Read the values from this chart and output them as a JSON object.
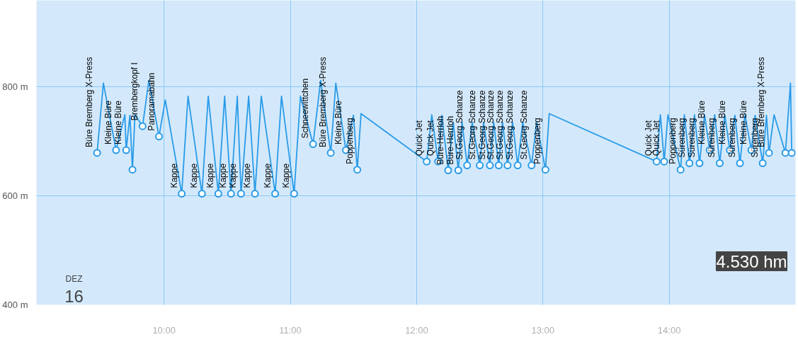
{
  "chart_data": {
    "type": "line",
    "xlim": [
      8.99,
      15.0
    ],
    "ylim": [
      400,
      959
    ],
    "xticks": [
      {
        "value": 10,
        "label": "10:00"
      },
      {
        "value": 11,
        "label": "11:00"
      },
      {
        "value": 12,
        "label": "12:00"
      },
      {
        "value": 13,
        "label": "13:00"
      },
      {
        "value": 14,
        "label": "14:00"
      }
    ],
    "yticks": [
      {
        "value": 400,
        "label": "400 m"
      },
      {
        "value": 600,
        "label": "600 m"
      },
      {
        "value": 800,
        "label": "800 m"
      }
    ],
    "grid": true,
    "series": [
      {
        "marker": "none",
        "color": "#2a9be8",
        "x": [
          9.47,
          9.52,
          9.62,
          9.69,
          9.7,
          9.73,
          9.75,
          9.77,
          9.83,
          9.88,
          9.96,
          10.01,
          10.14,
          10.19,
          10.3,
          10.35,
          10.43,
          10.48,
          10.53,
          10.58,
          10.61,
          10.67,
          10.72,
          10.77,
          10.88,
          10.93,
          11.03,
          11.08,
          11.18,
          11.24,
          11.32,
          11.36,
          11.44,
          11.5,
          11.53,
          11.56,
          12.08,
          12.12,
          12.17,
          12.2,
          12.25,
          12.29,
          12.33,
          12.36,
          12.4,
          12.44,
          12.5,
          12.53,
          12.58,
          12.61,
          12.65,
          12.68,
          12.72,
          12.76,
          12.8,
          12.84,
          12.91,
          12.95,
          13.02,
          13.05,
          13.9,
          13.93,
          13.96,
          13.99,
          14.09,
          14.12,
          14.16,
          14.2,
          14.24,
          14.28,
          14.32,
          14.36,
          14.4,
          14.44,
          14.48,
          14.52,
          14.56,
          14.6,
          14.65,
          14.68,
          14.74,
          14.77,
          14.79,
          14.83,
          14.92,
          14.96,
          14.97
        ],
        "values": [
          679,
          807,
          684,
          749,
          684,
          748,
          648,
          749,
          728,
          812,
          709,
          776,
          604,
          783,
          604,
          783,
          604,
          783,
          604,
          783,
          604,
          783,
          604,
          783,
          604,
          783,
          604,
          783,
          695,
          812,
          679,
          807,
          684,
          748,
          648,
          751,
          663,
          749,
          663,
          748,
          647,
          735,
          647,
          735,
          656,
          735,
          656,
          735,
          656,
          735,
          656,
          735,
          656,
          735,
          656,
          735,
          656,
          735,
          648,
          751,
          663,
          749,
          663,
          749,
          648,
          749,
          660,
          749,
          660,
          749,
          684,
          749,
          660,
          749,
          684,
          748,
          660,
          749,
          684,
          748,
          660,
          748,
          679,
          749,
          679,
          807,
          679
        ]
      },
      {
        "type": "scatter",
        "marker": "circle",
        "color": "#2a9be8",
        "x": [
          9.47,
          9.62,
          9.7,
          9.75,
          9.83,
          9.96,
          10.14,
          10.3,
          10.43,
          10.53,
          10.61,
          10.72,
          10.88,
          11.03,
          11.18,
          11.32,
          11.44,
          11.53,
          12.08,
          12.17,
          12.25,
          12.33,
          12.4,
          12.5,
          12.58,
          12.65,
          12.72,
          12.8,
          12.91,
          13.02,
          13.9,
          13.96,
          14.09,
          14.16,
          14.24,
          14.32,
          14.4,
          14.48,
          14.56,
          14.65,
          14.74,
          14.79,
          14.92,
          14.97
        ],
        "values": [
          679,
          684,
          684,
          648,
          728,
          709,
          604,
          604,
          604,
          604,
          604,
          604,
          604,
          604,
          695,
          679,
          684,
          648,
          663,
          663,
          647,
          647,
          656,
          656,
          656,
          656,
          656,
          656,
          656,
          648,
          663,
          663,
          648,
          660,
          660,
          684,
          660,
          684,
          660,
          684,
          660,
          679,
          679,
          679
        ]
      }
    ],
    "annotations": [
      "4.530 hm",
      "DEZ",
      "16",
      {
        "text": "Büre Bremberg X-Press",
        "x": 9.47,
        "y": 679
      },
      {
        "text": "Kleine Büre",
        "x": 9.62,
        "y": 684
      },
      {
        "text": "Kleine Büre",
        "x": 9.7,
        "y": 684
      },
      {
        "text": "Brembergkopf I",
        "x": 9.83,
        "y": 728
      },
      {
        "text": "Panoramabahn",
        "x": 9.96,
        "y": 709
      },
      {
        "text": "Kappe",
        "x": 10.14,
        "y": 604
      },
      {
        "text": "Kappe",
        "x": 10.3,
        "y": 604
      },
      {
        "text": "Kappe",
        "x": 10.43,
        "y": 604
      },
      {
        "text": "Kappe",
        "x": 10.53,
        "y": 604
      },
      {
        "text": "Kappe",
        "x": 10.61,
        "y": 604
      },
      {
        "text": "Kappe",
        "x": 10.72,
        "y": 604
      },
      {
        "text": "Kappe",
        "x": 10.88,
        "y": 604
      },
      {
        "text": "Kappe",
        "x": 11.03,
        "y": 604
      },
      {
        "text": "Schneewittchen",
        "x": 11.18,
        "y": 695
      },
      {
        "text": "Büre Bremberg X-Press",
        "x": 11.32,
        "y": 679
      },
      {
        "text": "Kleine Büre",
        "x": 11.44,
        "y": 684
      },
      {
        "text": "Poppenberg",
        "x": 11.53,
        "y": 648
      },
      {
        "text": "Quick Jet",
        "x": 12.08,
        "y": 663
      },
      {
        "text": "Quick Jet",
        "x": 12.17,
        "y": 663
      },
      {
        "text": "Büre-Herrloh",
        "x": 12.25,
        "y": 647
      },
      {
        "text": "Büre-Herrloh",
        "x": 12.33,
        "y": 647
      },
      {
        "text": "St.Georg Schanze",
        "x": 12.4,
        "y": 656
      },
      {
        "text": "St.Georg Schanze",
        "x": 12.5,
        "y": 656
      },
      {
        "text": "St.Georg Schanze",
        "x": 12.58,
        "y": 656
      },
      {
        "text": "St.Georg Schanze",
        "x": 12.65,
        "y": 656
      },
      {
        "text": "St.Georg Schanze",
        "x": 12.72,
        "y": 656
      },
      {
        "text": "St.Georg Schanze",
        "x": 12.8,
        "y": 656
      },
      {
        "text": "St.Georg Schanze",
        "x": 12.91,
        "y": 656
      },
      {
        "text": "Poppenberg",
        "x": 13.02,
        "y": 648
      },
      {
        "text": "Quick Jet",
        "x": 13.9,
        "y": 663
      },
      {
        "text": "Quick Jet",
        "x": 13.96,
        "y": 663
      },
      {
        "text": "Poppenberg",
        "x": 14.09,
        "y": 648
      },
      {
        "text": "Sürenberg",
        "x": 14.16,
        "y": 660
      },
      {
        "text": "Sürenberg",
        "x": 14.24,
        "y": 660
      },
      {
        "text": "Kleine Büre",
        "x": 14.32,
        "y": 684
      },
      {
        "text": "Sürenberg",
        "x": 14.4,
        "y": 660
      },
      {
        "text": "Kleine Büre",
        "x": 14.48,
        "y": 684
      },
      {
        "text": "Sürenberg",
        "x": 14.56,
        "y": 660
      },
      {
        "text": "Kleine Büre",
        "x": 14.65,
        "y": 684
      },
      {
        "text": "Sürenberg",
        "x": 14.74,
        "y": 660
      },
      {
        "text": "Büre Bremberg X-Press",
        "x": 14.79,
        "y": 679
      }
    ]
  }
}
